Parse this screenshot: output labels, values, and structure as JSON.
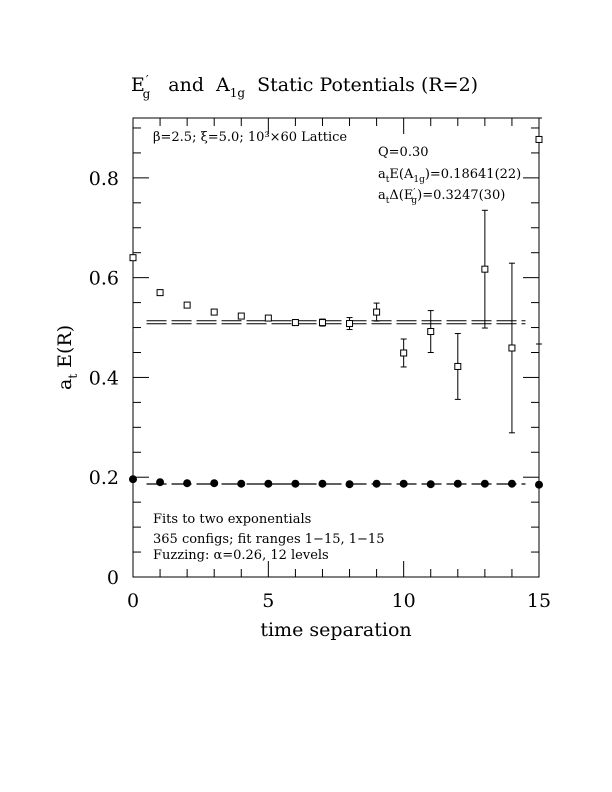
{
  "chart_data": {
    "type": "scatter",
    "title_parts": {
      "e": "E",
      "e_prime": "′",
      "e_sub": "g",
      "and": "and",
      "a": "A",
      "a_sub": "1g",
      "rest": "Static Potentials (R=2)"
    },
    "xlabel": "time separation",
    "ylabel_main": "a",
    "ylabel_sub": "t",
    "ylabel_rest": "E(R)",
    "xlim": [
      0,
      15
    ],
    "ylim": [
      0,
      0.92
    ],
    "xticks": [
      0,
      5,
      10,
      15
    ],
    "xtick_labels": [
      "0",
      "5",
      "10",
      "15"
    ],
    "yticks": [
      0,
      0.2,
      0.4,
      0.6,
      0.8
    ],
    "ytick_labels": [
      "0",
      "0.2",
      "0.4",
      "0.6",
      "0.8"
    ],
    "lattice_label": "β=2.5; ξ=5.0; 10³×60 Lattice",
    "annotations": {
      "q": "Q=0.30",
      "ea1g": {
        "a": "a",
        "t": "t",
        "e": "E(A",
        "sub": "1g",
        "val": ")=0.18641(22)"
      },
      "deg": {
        "a": "a",
        "t": "t",
        "d": "Δ(E",
        "prime": "′",
        "sub": "g",
        "val": ")=0.3247(30)"
      }
    },
    "footnotes": [
      "Fits to two exponentials",
      "365 configs; fit ranges 1−15, 1−15",
      "Fuzzing: α=0.26, 12 levels"
    ],
    "series": [
      {
        "marker": "open-square",
        "points": [
          {
            "x": 0,
            "y": 0.64,
            "err": 0.003
          },
          {
            "x": 1,
            "y": 0.57,
            "err": 0.003
          },
          {
            "x": 2,
            "y": 0.545,
            "err": 0.004
          },
          {
            "x": 3,
            "y": 0.531,
            "err": 0.004
          },
          {
            "x": 4,
            "y": 0.523,
            "err": 0.004
          },
          {
            "x": 5,
            "y": 0.519,
            "err": 0.005
          },
          {
            "x": 6,
            "y": 0.51,
            "err": 0.006
          },
          {
            "x": 7,
            "y": 0.51,
            "err": 0.007
          },
          {
            "x": 8,
            "y": 0.508,
            "err": 0.012
          },
          {
            "x": 9,
            "y": 0.531,
            "err": 0.018
          },
          {
            "x": 10,
            "y": 0.449,
            "err": 0.028
          },
          {
            "x": 11,
            "y": 0.492,
            "err": 0.042
          },
          {
            "x": 12,
            "y": 0.422,
            "err": 0.066
          },
          {
            "x": 13,
            "y": 0.617,
            "err": 0.118
          },
          {
            "x": 14,
            "y": 0.459,
            "err": 0.17
          },
          {
            "x": 15,
            "y": 0.877,
            "err": 0.41
          }
        ],
        "fit_band": {
          "x_from": 0.5,
          "x_to": 14.5,
          "y_upper": 0.5136,
          "y_lower": 0.5076
        }
      },
      {
        "marker": "filled-circle",
        "points": [
          {
            "x": 0,
            "y": 0.196
          },
          {
            "x": 1,
            "y": 0.19
          },
          {
            "x": 2,
            "y": 0.188
          },
          {
            "x": 3,
            "y": 0.188
          },
          {
            "x": 4,
            "y": 0.187
          },
          {
            "x": 5,
            "y": 0.187
          },
          {
            "x": 6,
            "y": 0.187
          },
          {
            "x": 7,
            "y": 0.187
          },
          {
            "x": 8,
            "y": 0.186
          },
          {
            "x": 9,
            "y": 0.187
          },
          {
            "x": 10,
            "y": 0.187
          },
          {
            "x": 11,
            "y": 0.186
          },
          {
            "x": 12,
            "y": 0.187
          },
          {
            "x": 13,
            "y": 0.187
          },
          {
            "x": 14,
            "y": 0.187
          },
          {
            "x": 15,
            "y": 0.185
          }
        ],
        "fit_band": {
          "x_from": 0.5,
          "x_to": 14.5,
          "y_upper": 0.1866,
          "y_lower": 0.1862
        }
      }
    ]
  }
}
